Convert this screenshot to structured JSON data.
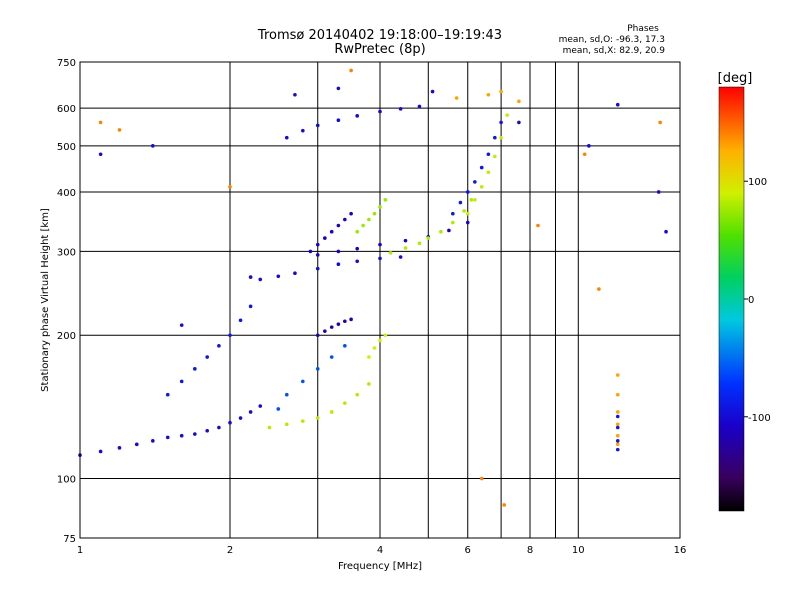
{
  "chart_data": {
    "type": "scatter",
    "title": "Tromsø 20140402 19:18:00–19:19:43",
    "subtitle": "RwPretec (8p)",
    "xlabel": "Frequency [MHz]",
    "ylabel": "Stationary phase Virtual Height [km]",
    "x_scale": "log",
    "y_scale": "log",
    "xlim": [
      1,
      16
    ],
    "ylim": [
      75,
      750
    ],
    "x_ticks": [
      1,
      2,
      4,
      6,
      8,
      10,
      16
    ],
    "x_tick_labels": [
      "1",
      "2",
      "4",
      "6",
      "8",
      "10",
      "16"
    ],
    "x_minor_ticks": [
      3,
      5,
      7,
      9
    ],
    "y_ticks": [
      75,
      100,
      200,
      300,
      400,
      500,
      600,
      750
    ],
    "y_tick_labels": [
      "75",
      "100",
      "200",
      "300",
      "400",
      "500",
      "600",
      "750"
    ],
    "grid": true,
    "phase_header": {
      "title": "Phases",
      "line_o": "mean, sd,O: -96.3, 17.3",
      "line_x": "mean, sd,X:  82.9, 20.9"
    },
    "colorbar": {
      "label": "[deg]",
      "range": [
        -180,
        180
      ],
      "ticks": [
        100,
        0,
        -100
      ],
      "tick_labels": [
        "100",
        "0",
        "-100"
      ]
    },
    "series": [
      {
        "phase": -100,
        "x": [
          1.0,
          1.1,
          1.2,
          1.3,
          1.4,
          1.5,
          1.6,
          1.7,
          1.8,
          1.9,
          2.0,
          2.1,
          2.2,
          2.3
        ],
        "y": [
          112,
          114,
          116,
          118,
          120,
          122,
          123,
          124,
          126,
          128,
          131,
          134,
          138,
          142
        ]
      },
      {
        "phase": -100,
        "x": [
          2.2,
          2.3,
          2.5,
          2.7,
          3.0,
          3.3,
          3.6,
          4.0,
          4.4
        ],
        "y": [
          265,
          262,
          266,
          270,
          276,
          282,
          286,
          290,
          292
        ]
      },
      {
        "phase": -110,
        "x": [
          3.0,
          3.3,
          3.6,
          4.0,
          4.5,
          5.0,
          5.5,
          6.0
        ],
        "y": [
          295,
          300,
          304,
          310,
          316,
          322,
          332,
          345
        ]
      },
      {
        "phase": -100,
        "x": [
          2.6,
          2.8,
          3.0,
          3.3,
          3.6,
          4.0,
          4.4,
          4.8
        ],
        "y": [
          520,
          538,
          552,
          566,
          578,
          590,
          598,
          605
        ]
      },
      {
        "phase": -90,
        "x": [
          5.6,
          5.8,
          6.0,
          6.2,
          6.4,
          6.6,
          6.8,
          7.0
        ],
        "y": [
          360,
          380,
          400,
          420,
          450,
          480,
          520,
          560
        ]
      },
      {
        "phase": -90,
        "x": [
          1.5,
          1.6,
          1.7,
          1.8,
          1.9,
          2.0,
          2.1,
          2.2
        ],
        "y": [
          150,
          160,
          170,
          180,
          190,
          200,
          215,
          230
        ]
      },
      {
        "phase": -120,
        "x": [
          3.0,
          3.1,
          3.2,
          3.3,
          3.4,
          3.5
        ],
        "y": [
          200,
          204,
          208,
          211,
          214,
          216
        ]
      },
      {
        "phase": -110,
        "x": [
          2.9,
          3.0,
          3.1,
          3.2,
          3.3,
          3.4,
          3.5
        ],
        "y": [
          300,
          310,
          320,
          330,
          340,
          350,
          360
        ]
      },
      {
        "phase": -60,
        "x": [
          2.5,
          2.6,
          2.8,
          3.0,
          3.2,
          3.4
        ],
        "y": [
          140,
          150,
          160,
          170,
          180,
          190
        ]
      },
      {
        "phase": 82,
        "x": [
          2.4,
          2.6,
          2.8,
          3.0,
          3.2,
          3.4,
          3.6,
          3.8
        ],
        "y": [
          128,
          130,
          132,
          134,
          138,
          144,
          150,
          158
        ]
      },
      {
        "phase": 80,
        "x": [
          4.2,
          4.5,
          4.8,
          5.0,
          5.3,
          5.6,
          5.9,
          6.1
        ],
        "y": [
          298,
          305,
          312,
          320,
          330,
          345,
          365,
          385
        ]
      },
      {
        "phase": 85,
        "x": [
          6.0,
          6.2,
          6.4,
          6.6,
          6.8,
          7.0,
          7.2
        ],
        "y": [
          360,
          385,
          410,
          440,
          475,
          520,
          580
        ]
      },
      {
        "phase": 75,
        "x": [
          3.6,
          3.7,
          3.8,
          3.9,
          4.0,
          4.1
        ],
        "y": [
          330,
          340,
          350,
          360,
          372,
          385
        ]
      },
      {
        "phase": 90,
        "x": [
          3.8,
          3.9,
          4.0,
          4.1
        ],
        "y": [
          180,
          188,
          195,
          200
        ]
      },
      {
        "phase": 130,
        "x": [
          12.0,
          12.0,
          12.0,
          12.0,
          12.0,
          12.0
        ],
        "y": [
          118,
          123,
          130,
          138,
          150,
          165
        ]
      },
      {
        "phase": -90,
        "x": [
          12.0,
          12.0,
          12.0,
          12.0
        ],
        "y": [
          115,
          120,
          128,
          135
        ]
      },
      {
        "phase": 130,
        "x": [
          5.7,
          6.6,
          7.0,
          7.6
        ],
        "y": [
          630,
          640,
          650,
          620
        ]
      },
      {
        "phase": -100,
        "x": [
          1.1,
          1.4,
          1.6,
          2.7,
          3.3,
          5.1,
          7.6,
          10.5,
          12.0,
          14.5,
          15.0
        ],
        "y": [
          480,
          500,
          210,
          640,
          660,
          650,
          560,
          500,
          610,
          400,
          330
        ]
      },
      {
        "phase": 140,
        "x": [
          1.1,
          1.2,
          2.0,
          3.5,
          6.4,
          7.1,
          8.3,
          10.3,
          11.0,
          14.6
        ],
        "y": [
          560,
          540,
          410,
          720,
          100,
          88,
          340,
          480,
          250,
          560
        ]
      }
    ]
  }
}
